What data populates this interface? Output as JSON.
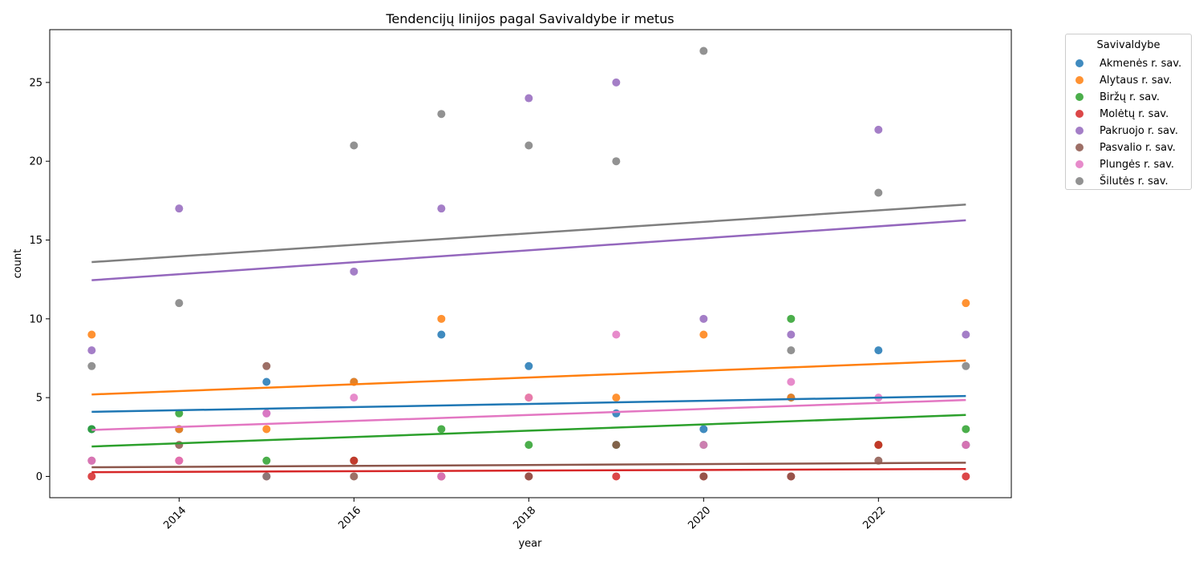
{
  "chart_data": {
    "type": "scatter",
    "title": "Tendencijų linijos pagal Savivaldybe ir metus",
    "xlabel": "year",
    "ylabel": "count",
    "xlim": [
      2012.52,
      2023.52
    ],
    "ylim": [
      -1.35,
      28.35
    ],
    "xticks": [
      2014,
      2016,
      2018,
      2020,
      2022
    ],
    "yticks": [
      0,
      5,
      10,
      15,
      20,
      25
    ],
    "grid": false,
    "legend": {
      "title": "Savivaldybe",
      "placement": "outside-top-right"
    },
    "series": [
      {
        "name": "Akmenės r. sav.",
        "color": "#1f77b4",
        "x": [
          2013,
          2014,
          2015,
          2016,
          2017,
          2018,
          2019,
          2020,
          2021,
          2022,
          2023
        ],
        "y": [
          3,
          3,
          6,
          6,
          9,
          7,
          4,
          3,
          5,
          8,
          2
        ],
        "trend": [
          4.1,
          5.1
        ]
      },
      {
        "name": "Alytaus r. sav.",
        "color": "#ff7f0e",
        "x": [
          2013,
          2014,
          2015,
          2016,
          2017,
          2018,
          2019,
          2020,
          2021,
          2022,
          2023
        ],
        "y": [
          9,
          3,
          3,
          6,
          10,
          5,
          5,
          9,
          5,
          2,
          11
        ],
        "trend": [
          5.2,
          7.35
        ]
      },
      {
        "name": "Biržų r. sav.",
        "color": "#2ca02c",
        "x": [
          2013,
          2014,
          2015,
          2016,
          2017,
          2018,
          2019,
          2020,
          2021,
          2022,
          2023
        ],
        "y": [
          3,
          4,
          1,
          1,
          3,
          2,
          2,
          2,
          10,
          2,
          3
        ],
        "trend": [
          1.9,
          3.9
        ]
      },
      {
        "name": "Molėtų r. sav.",
        "color": "#d62728",
        "x": [
          2013,
          2014,
          2015,
          2016,
          2017,
          2018,
          2019,
          2020,
          2021,
          2022,
          2023
        ],
        "y": [
          0,
          1,
          0,
          1,
          0,
          0,
          0,
          0,
          0,
          2,
          0
        ],
        "trend": [
          0.27,
          0.47
        ]
      },
      {
        "name": "Pakruojo r. sav.",
        "color": "#9467bd",
        "x": [
          2013,
          2014,
          2015,
          2016,
          2017,
          2018,
          2019,
          2020,
          2021,
          2022,
          2023
        ],
        "y": [
          8,
          17,
          4,
          13,
          17,
          24,
          25,
          10,
          9,
          22,
          9
        ],
        "trend": [
          12.45,
          16.25
        ]
      },
      {
        "name": "Pasvalio r. sav.",
        "color": "#8c564b",
        "x": [
          2013,
          2014,
          2015,
          2016,
          2017,
          2018,
          2019,
          2020,
          2021,
          2022,
          2023
        ],
        "y": [
          1,
          2,
          7,
          0,
          0,
          0,
          2,
          0,
          0,
          1,
          2
        ],
        "trend": [
          0.58,
          0.87
        ]
      },
      {
        "name": "Plungės r. sav.",
        "color": "#e377c2",
        "x": [
          2013,
          2014,
          2015,
          2016,
          2017,
          2018,
          2019,
          2020,
          2021,
          2022,
          2023
        ],
        "y": [
          1,
          1,
          4,
          5,
          0,
          5,
          9,
          2,
          6,
          5,
          2
        ],
        "trend": [
          2.95,
          4.85
        ]
      },
      {
        "name": "Šilutės r. sav.",
        "color": "#7f7f7f",
        "x": [
          2013,
          2014,
          2015,
          2016,
          2017,
          2018,
          2019,
          2020,
          2021,
          2022,
          2023
        ],
        "y": [
          7,
          11,
          0,
          21,
          23,
          21,
          20,
          27,
          8,
          18,
          7
        ],
        "trend": [
          13.6,
          17.25
        ]
      }
    ]
  }
}
